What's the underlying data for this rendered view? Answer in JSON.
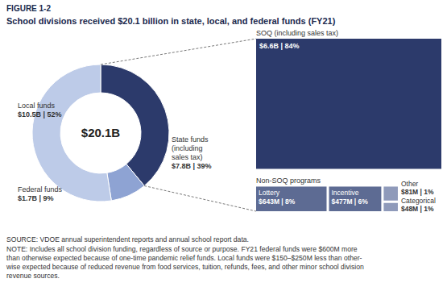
{
  "chart_data": [
    {
      "type": "donut",
      "title": "FIGURE 1-2",
      "subtitle": "School divisions received $20.1 billion in state, local, and federal funds (FY21)",
      "center_label": "$20.1B",
      "categories": [
        "State funds (including sales tax)",
        "Federal funds",
        "Local funds"
      ],
      "values": [
        7.8,
        1.7,
        10.5
      ],
      "value_labels": [
        "$7.8B | 39%",
        "$1.7B | 9%",
        "$10.5B | 52%"
      ],
      "colors": [
        "#2c3a6b",
        "#8ea3d3",
        "#bdcbe8"
      ],
      "data_labels": true
    },
    {
      "type": "treemap",
      "group_label": "Non-SOQ programs",
      "categories": [
        "SOQ (including sales tax)",
        "Lottery",
        "Incentive",
        "Other",
        "Categorical"
      ],
      "values": [
        6600,
        643,
        477,
        81,
        48
      ],
      "value_labels": [
        "$6.6B | 84%",
        "$643M | 8%",
        "$477M | 6%",
        "$81M | 1%",
        "$48M | 1%"
      ],
      "colors": [
        "#2c3a6b",
        "#5d6b93",
        "#5d6b93",
        "#8f9aba",
        "#8f9aba"
      ],
      "data_labels": true
    }
  ],
  "source": "SOURCE: VDOE annual superintendent reports and annual school report data.",
  "note": [
    "NOTE: Includes all school division funding, regardless of source or purpose. FY21 federal funds were $600M more",
    "than otherwise expected because of one-time pandemic relief funds. Local funds were $150–$250M less than other-",
    "wise expected because of reduced revenue from food services, tuition, refunds, fees, and other minor school division",
    "revenue sources."
  ]
}
